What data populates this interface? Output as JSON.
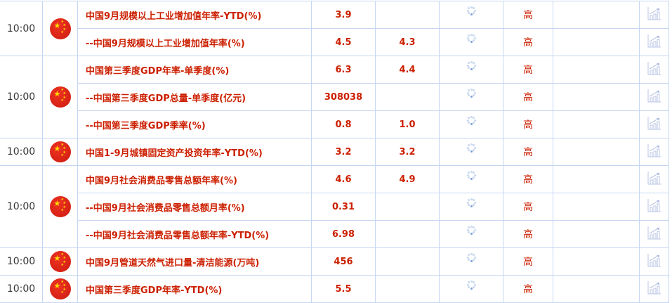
{
  "rows": [
    {
      "time": "10:00",
      "span": 2,
      "name": "中国9月规模以上工业增加值年率-YTD(%)",
      "value": "3.9",
      "prev": "",
      "importance": "高"
    },
    {
      "name": "--中国9月规模以上工业增加值年率(%)",
      "value": "4.5",
      "prev": "4.3",
      "importance": "高"
    },
    {
      "time": "10:00",
      "span": 3,
      "name": "中国第三季度GDP年率-单季度(%)",
      "value": "6.3",
      "prev": "4.4",
      "importance": "高"
    },
    {
      "name": "--中国第三季度GDP总量-单季度(亿元)",
      "value": "308038",
      "prev": "",
      "importance": "高"
    },
    {
      "name": "--中国第三季度GDP季率(%)",
      "value": "0.8",
      "prev": "1.0",
      "importance": "高"
    },
    {
      "time": "10:00",
      "span": 1,
      "name": "中国1-9月城镇固定资产投资年率-YTD(%)",
      "value": "3.2",
      "prev": "3.2",
      "importance": "高"
    },
    {
      "time": "10:00",
      "span": 3,
      "name": "中国9月社会消费品零售总额年率(%)",
      "value": "4.6",
      "prev": "4.9",
      "importance": "高"
    },
    {
      "name": "--中国9月社会消费品零售总额月率(%)",
      "value": "0.31",
      "prev": "",
      "importance": "高"
    },
    {
      "name": "--中国9月社会消费品零售总额年率-YTD(%)",
      "value": "6.98",
      "prev": "",
      "importance": "高"
    },
    {
      "time": "10:00",
      "span": 1,
      "name": "中国9月管道天然气进口量-清洁能源(万吨)",
      "value": "456",
      "prev": "",
      "importance": "高"
    },
    {
      "time": "10:00",
      "span": 1,
      "name": "中国第三季度GDP年率-YTD(%)",
      "value": "5.5",
      "prev": "",
      "importance": "高"
    }
  ],
  "icons": {
    "flag": "china-flag-icon",
    "loading": "loading-spinner-icon",
    "chart": "chart-trend-icon"
  },
  "colors": {
    "text": "#cc1f00",
    "border": "#c6d6f2"
  }
}
